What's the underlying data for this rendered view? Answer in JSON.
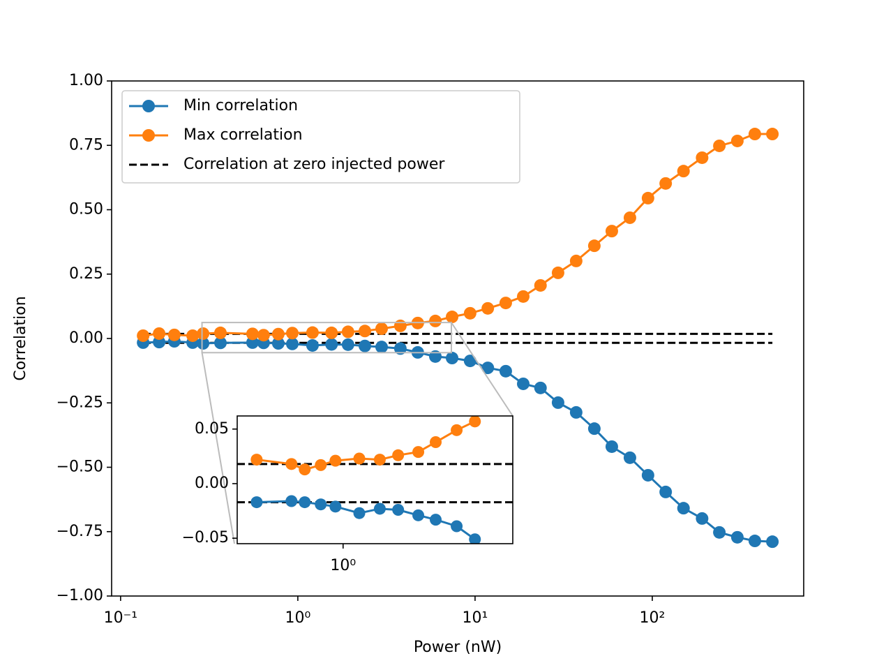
{
  "chart_data": [
    {
      "type": "line",
      "xscale": "log",
      "xlabel": "Power (nW)",
      "ylabel": "Correlation",
      "legend": "upper left",
      "x": [
        0.134,
        0.165,
        0.201,
        0.255,
        0.292,
        0.366,
        0.555,
        0.641,
        0.776,
        0.931,
        1.21,
        1.55,
        1.92,
        2.39,
        2.97,
        3.79,
        4.75,
        5.97,
        7.42,
        9.38,
        11.8,
        14.9,
        18.7,
        23.4,
        29.4,
        37.2,
        47.1,
        59.1,
        74.8,
        94.6,
        119,
        150,
        191,
        239,
        302,
        379,
        476
      ],
      "series": [
        {
          "name": "Min correlation",
          "color": "#1f77b4",
          "values": [
            -0.016,
            -0.014,
            -0.011,
            -0.016,
            -0.019,
            -0.017,
            -0.016,
            -0.017,
            -0.019,
            -0.021,
            -0.027,
            -0.023,
            -0.024,
            -0.029,
            -0.033,
            -0.039,
            -0.054,
            -0.07,
            -0.076,
            -0.087,
            -0.114,
            -0.127,
            -0.176,
            -0.192,
            -0.249,
            -0.287,
            -0.35,
            -0.42,
            -0.463,
            -0.531,
            -0.596,
            -0.659,
            -0.699,
            -0.753,
            -0.772,
            -0.786,
            -0.789
          ]
        },
        {
          "name": "Max correlation",
          "color": "#ff7f0e",
          "values": [
            0.011,
            0.019,
            0.014,
            0.011,
            0.019,
            0.022,
            0.018,
            0.013,
            0.017,
            0.021,
            0.023,
            0.022,
            0.026,
            0.029,
            0.038,
            0.049,
            0.06,
            0.068,
            0.084,
            0.098,
            0.117,
            0.138,
            0.163,
            0.206,
            0.255,
            0.301,
            0.36,
            0.417,
            0.469,
            0.545,
            0.602,
            0.65,
            0.702,
            0.748,
            0.767,
            0.794,
            0.794
          ]
        }
      ],
      "hlines": {
        "name": "Correlation at zero injected power",
        "color": "#000000",
        "values": [
          0.018,
          -0.017
        ]
      },
      "xlim": [
        0.089,
        715
      ],
      "ylim": [
        -1,
        1
      ],
      "xticks": [
        {
          "value": 0.1,
          "label": "10⁻¹"
        },
        {
          "value": 1,
          "label": "10⁰"
        },
        {
          "value": 10,
          "label": "10¹"
        },
        {
          "value": 100,
          "label": "10²"
        }
      ],
      "yticks": [
        {
          "value": 1,
          "label": "1.00"
        },
        {
          "value": 0.75,
          "label": "0.75"
        },
        {
          "value": 0.5,
          "label": "0.50"
        },
        {
          "value": 0.25,
          "label": "0.25"
        },
        {
          "value": 0,
          "label": "0.00"
        },
        {
          "value": -0.25,
          "label": "−0.25"
        },
        {
          "value": -0.5,
          "label": "−0.50"
        },
        {
          "value": -0.75,
          "label": "−0.75"
        },
        {
          "value": -1,
          "label": "−1.00"
        }
      ]
    },
    {
      "type": "line",
      "xscale": "log",
      "x": [
        0.362,
        0.545,
        0.637,
        0.769,
        0.914,
        1.21,
        1.54,
        1.91,
        2.42,
        2.97,
        3.8,
        4.71
      ],
      "series": [
        {
          "color": "#1f77b4",
          "values": [
            -0.017,
            -0.016,
            -0.017,
            -0.019,
            -0.021,
            -0.027,
            -0.023,
            -0.024,
            -0.029,
            -0.033,
            -0.039,
            -0.051
          ]
        },
        {
          "color": "#ff7f0e",
          "values": [
            0.022,
            0.018,
            0.013,
            0.017,
            0.021,
            0.023,
            0.022,
            0.026,
            0.029,
            0.038,
            0.049,
            0.057
          ]
        }
      ],
      "hlines": {
        "color": "#000000",
        "values": [
          0.018,
          -0.017
        ]
      },
      "xlim": [
        0.288,
        7.35
      ],
      "ylim": [
        -0.055,
        0.062
      ],
      "xticks": [
        {
          "value": 1,
          "label": "10⁰"
        }
      ],
      "yticks": [
        {
          "value": 0.05,
          "label": "0.05"
        },
        {
          "value": 0,
          "label": "0.00"
        },
        {
          "value": -0.05,
          "label": "−0.05"
        }
      ]
    }
  ]
}
